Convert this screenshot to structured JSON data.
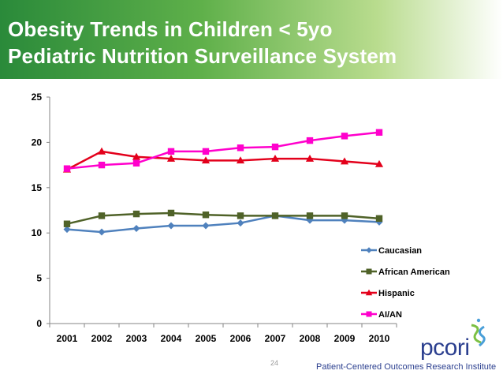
{
  "slide": {
    "title_line1": "Obesity Trends in Children < 5yo",
    "title_line2": "Pediatric Nutrition Surveillance System",
    "page_number": "24"
  },
  "branding": {
    "logo_text": "pcori",
    "tagline": "Patient-Centered Outcomes Research Institute"
  },
  "chart_data": {
    "type": "line",
    "title": "",
    "xlabel": "",
    "ylabel": "",
    "categories": [
      "2001",
      "2002",
      "2003",
      "2004",
      "2005",
      "2006",
      "2007",
      "2008",
      "2009",
      "2010"
    ],
    "ylim": [
      0,
      25
    ],
    "yticks": [
      0,
      5,
      10,
      15,
      20,
      25
    ],
    "grid": false,
    "legend_position": "right",
    "series": [
      {
        "name": "Caucasian",
        "color": "#4f81bd",
        "marker": "diamond",
        "values": [
          10.4,
          10.1,
          10.5,
          10.8,
          10.8,
          11.1,
          11.9,
          11.4,
          11.4,
          11.2
        ]
      },
      {
        "name": "African American",
        "color": "#4f6228",
        "marker": "square",
        "values": [
          11.0,
          11.9,
          12.1,
          12.2,
          12.0,
          11.9,
          11.9,
          11.9,
          11.9,
          11.6
        ]
      },
      {
        "name": "Hispanic",
        "color": "#e3001b",
        "marker": "triangle",
        "values": [
          17.0,
          19.0,
          18.4,
          18.2,
          18.0,
          18.0,
          18.2,
          18.2,
          17.9,
          17.6
        ]
      },
      {
        "name": "AI/AN",
        "color": "#ff00cc",
        "marker": "square",
        "values": [
          17.1,
          17.5,
          17.7,
          19.0,
          19.0,
          19.4,
          19.5,
          20.2,
          20.7,
          21.1
        ]
      }
    ]
  }
}
